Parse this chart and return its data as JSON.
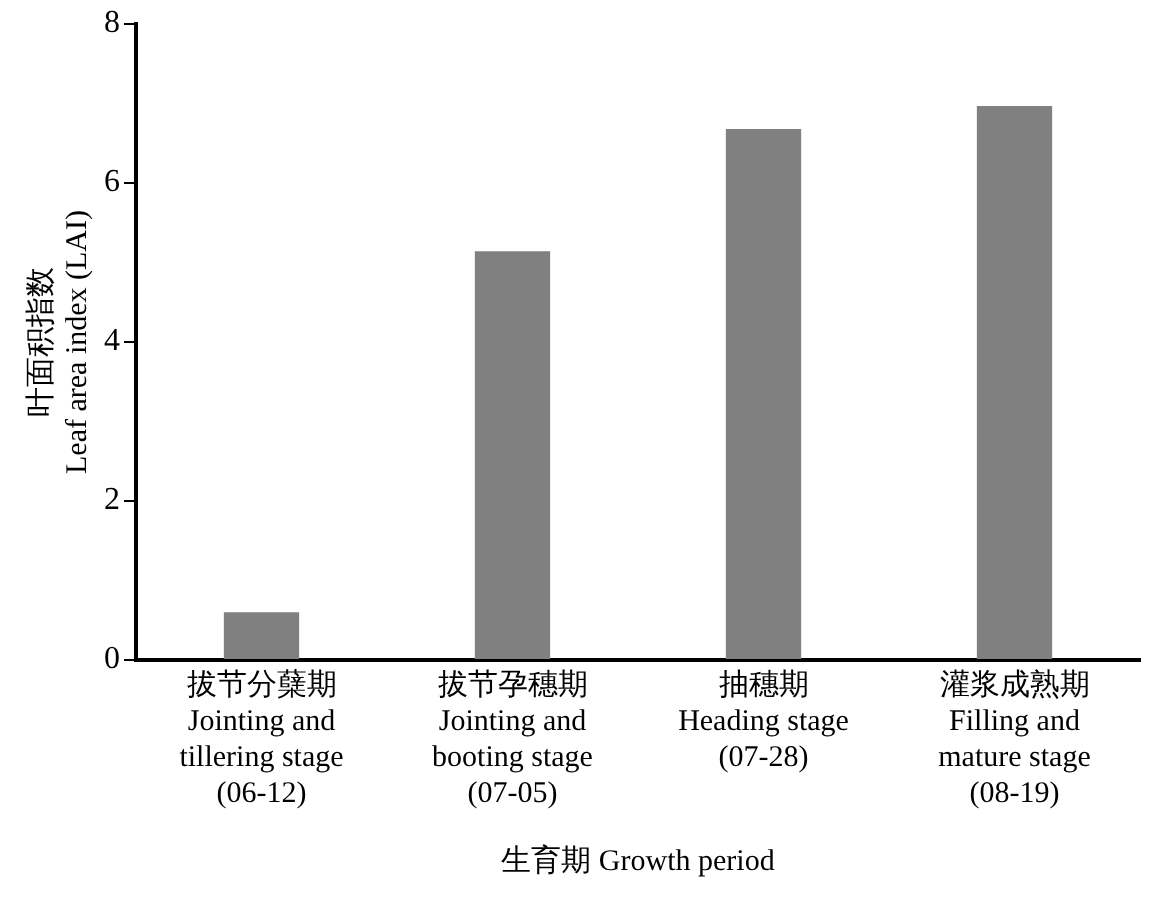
{
  "chart_data": {
    "type": "bar",
    "categories": [
      "拔节分蘖期\nJointing and\ntillering stage\n(06-12)",
      "拔节孕穗期\nJointing and\nbooting stage\n(07-05)",
      "抽穗期\nHeading stage\n(07-28)",
      "灌浆成熟期\nFilling and\nmature stage\n(08-19)"
    ],
    "values": [
      0.6,
      5.14,
      6.68,
      6.97
    ],
    "color": "#808080",
    "xlabel": "生育期 Growth period",
    "ylabel": "叶面积指数\nLeaf area index (LAI)",
    "ylim": [
      0,
      8
    ],
    "yticks": [
      0,
      2,
      4,
      6,
      8
    ],
    "grid": false,
    "legend": false
  }
}
